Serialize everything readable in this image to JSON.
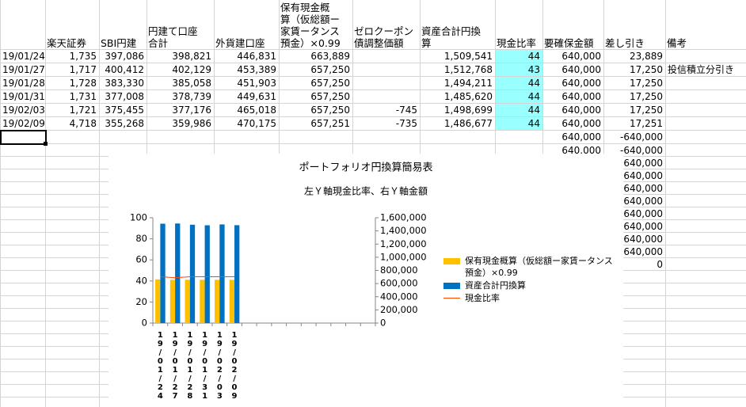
{
  "table": {
    "headers": [
      null,
      [
        "楽天証券"
      ],
      [
        "SBI円建"
      ],
      [
        "円建て口座",
        "合計"
      ],
      [
        "外貨建口座"
      ],
      [
        "保有現金概",
        "算（仮総額ー",
        "家賃ータンス",
        "預金）×0.99"
      ],
      [
        "ゼロクーポン",
        "債調整価額"
      ],
      [
        "資産合計円換",
        "算"
      ],
      [
        "現金比率"
      ],
      [
        "要確保金額"
      ],
      [
        "差し引き"
      ],
      [
        "備考"
      ]
    ],
    "rows": [
      [
        "19/01/24",
        "1,735",
        "397,086",
        "398,821",
        "446,831",
        "663,889",
        null,
        "1,509,541",
        "44",
        "640,000",
        "23,889",
        null
      ],
      [
        "19/01/27",
        "1,717",
        "400,412",
        "402,129",
        "453,389",
        "657,250",
        null,
        "1,512,768",
        "43",
        "640,000",
        "17,250",
        "投信積立分引き"
      ],
      [
        "19/01/28",
        "1,728",
        "383,330",
        "385,058",
        "451,903",
        "657,250",
        null,
        "1,494,211",
        "44",
        "640,000",
        "17,250",
        null
      ],
      [
        "19/01/31",
        "1,731",
        "377,008",
        "378,739",
        "449,631",
        "657,250",
        null,
        "1,485,620",
        "44",
        "640,000",
        "17,250",
        null
      ],
      [
        "19/02/03",
        "1,721",
        "375,455",
        "377,176",
        "465,018",
        "657,250",
        "-745",
        "1,498,699",
        "44",
        "640,000",
        "17,250",
        null
      ],
      [
        "19/02/09",
        "4,718",
        "355,268",
        "359,986",
        "470,175",
        "657,251",
        "-735",
        "1,486,677",
        "44",
        "640,000",
        "17,251",
        null
      ],
      [
        null,
        null,
        null,
        null,
        null,
        null,
        null,
        null,
        null,
        "640,000",
        "-640,000",
        null
      ],
      [
        null,
        null,
        null,
        null,
        null,
        null,
        null,
        null,
        null,
        "640,000",
        "-640,000",
        null
      ],
      [
        null,
        null,
        null,
        null,
        null,
        null,
        null,
        null,
        null,
        null,
        "-640,000",
        null
      ],
      [
        null,
        null,
        null,
        null,
        null,
        null,
        null,
        null,
        null,
        null,
        "-640,000",
        null
      ],
      [
        null,
        null,
        null,
        null,
        null,
        null,
        null,
        null,
        null,
        null,
        "-640,000",
        null
      ],
      [
        null,
        null,
        null,
        null,
        null,
        null,
        null,
        null,
        null,
        null,
        "-640,000",
        null
      ],
      [
        null,
        null,
        null,
        null,
        null,
        null,
        null,
        null,
        null,
        null,
        "-640,000",
        null
      ],
      [
        null,
        null,
        null,
        null,
        null,
        null,
        null,
        null,
        null,
        null,
        "-640,000",
        null
      ],
      [
        null,
        null,
        null,
        null,
        null,
        null,
        null,
        null,
        null,
        null,
        "-640,000",
        null
      ],
      [
        null,
        null,
        null,
        null,
        null,
        null,
        null,
        null,
        null,
        null,
        "-640,000",
        null
      ],
      [
        null,
        null,
        null,
        null,
        null,
        null,
        null,
        null,
        null,
        null,
        "0",
        null
      ]
    ]
  },
  "chart": {
    "type": "bar",
    "title": "ポートフォリオ円換算簡易表",
    "subtitle": "左Ｙ軸現金比率、右Ｙ軸金額",
    "categories": [
      "19/01/24",
      "19/01/27",
      "19/01/28",
      "19/01/31",
      "19/02/03",
      "19/02/09",
      null,
      null,
      null,
      null,
      null,
      null,
      null,
      null,
      null
    ],
    "ylim": [
      0,
      100
    ],
    "yticks": [
      0,
      20,
      40,
      60,
      80,
      100
    ],
    "y2lim": [
      0,
      1600000
    ],
    "y2ticks": [
      0,
      {
        "value": 200000,
        "label": "200,000"
      },
      {
        "value": 400000,
        "label": "400,000"
      },
      {
        "value": 600000,
        "label": "600,000"
      },
      {
        "value": 800000,
        "label": "800,000"
      },
      {
        "value": 1000000,
        "label": "1,000,000"
      },
      {
        "value": 1200000,
        "label": "1,200,000"
      },
      {
        "value": 1400000,
        "label": "1,400,000"
      },
      {
        "value": 1600000,
        "label": "1,600,000"
      }
    ],
    "series": [
      {
        "name": "保有現金概算（仮総額ー家賃ータンス預金）×0.99",
        "color": "#ffc000",
        "type": "bar",
        "axis": "y2",
        "values": [
          663889,
          657250,
          657250,
          657250,
          657250,
          657251,
          null,
          null,
          null,
          null,
          null,
          null,
          null,
          null,
          null
        ]
      },
      {
        "name": "資産合計円換算",
        "color": "#0070c0",
        "type": "bar",
        "axis": "y2",
        "values": [
          1509541,
          1512768,
          1494211,
          1485620,
          1498699,
          1486677,
          null,
          null,
          null,
          null,
          null,
          null,
          null,
          null,
          null
        ]
      },
      {
        "name": "現金比率",
        "color": "#ff4500",
        "type": "line",
        "axis": "y",
        "values": [
          44,
          43,
          44,
          44,
          44,
          44,
          null,
          null,
          null,
          null,
          null,
          null,
          null,
          null,
          null
        ]
      }
    ]
  }
}
